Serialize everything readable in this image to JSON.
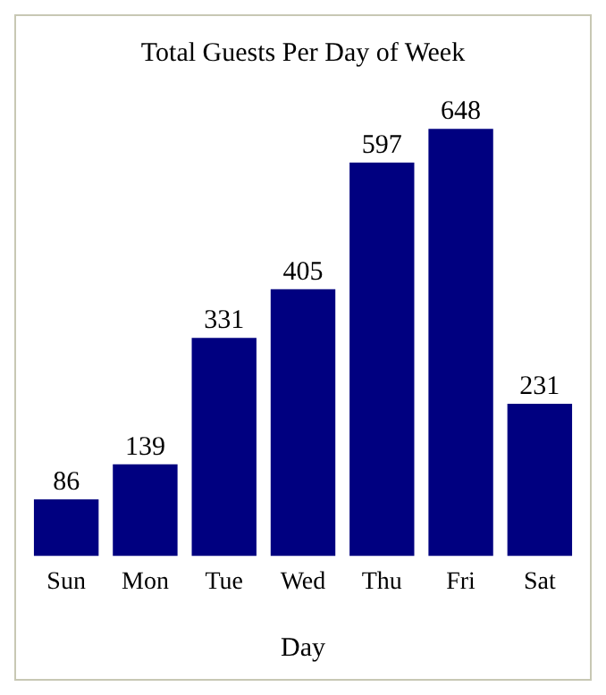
{
  "chart_data": {
    "type": "bar",
    "title": "Total Guests Per Day of Week",
    "xlabel": "Day",
    "categories": [
      "Sun",
      "Mon",
      "Tue",
      "Wed",
      "Thu",
      "Fri",
      "Sat"
    ],
    "values": [
      86,
      139,
      331,
      405,
      597,
      648,
      231
    ],
    "color": "#000080",
    "data_labels": true,
    "tick_labels": "x",
    "grid": false,
    "legend": false
  }
}
